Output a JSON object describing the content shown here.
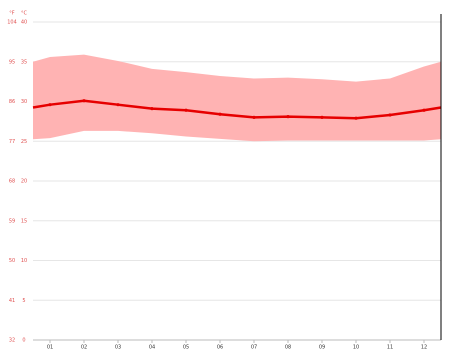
{
  "chart_data": {
    "type": "band-line",
    "y_unit_f": "°F",
    "y_unit_c": "°C",
    "categories": [
      "01",
      "02",
      "03",
      "04",
      "05",
      "06",
      "07",
      "08",
      "09",
      "10",
      "11",
      "12"
    ],
    "values": [
      29.6,
      30.1,
      29.6,
      29.1,
      28.9,
      28.4,
      28.0,
      28.1,
      28.0,
      27.9,
      28.3,
      28.9
    ],
    "band_high": [
      35.6,
      35.9,
      35.1,
      34.1,
      33.7,
      33.2,
      32.9,
      33.0,
      32.8,
      32.5,
      32.9,
      34.4
    ],
    "band_low": [
      25.4,
      26.3,
      26.3,
      26.0,
      25.6,
      25.3,
      25.0,
      25.1,
      25.1,
      25.1,
      25.1,
      25.1
    ],
    "color": "#e60000",
    "band_color": "#ffb3b3",
    "ylim": [
      0,
      40
    ],
    "yticks": [
      0,
      5,
      10,
      15,
      20,
      25,
      30,
      35,
      40
    ],
    "yticks_f": [
      32,
      41,
      50,
      59,
      68,
      77,
      86,
      95,
      104
    ],
    "grid": true
  }
}
